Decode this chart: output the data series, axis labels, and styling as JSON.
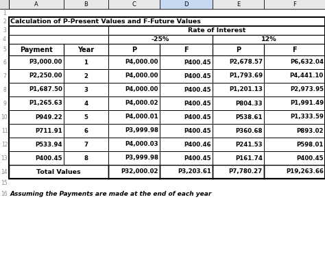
{
  "title": "Calculation of P-Present Values and F-Future Values",
  "rate_of_interest": "Rate of Interest",
  "rate1": "-25%",
  "rate2": "12%",
  "col_headers": [
    "Payment",
    "Year",
    "P",
    "F",
    "P",
    "F"
  ],
  "col_letters": [
    "A",
    "B",
    "C",
    "D",
    "E",
    "F"
  ],
  "rows": [
    [
      "P3,000.00",
      "1",
      "P4,000.00",
      "P400.45",
      "P2,678.57",
      "P6,632.04"
    ],
    [
      "P2,250.00",
      "2",
      "P4,000.00",
      "P400.45",
      "P1,793.69",
      "P4,441.10"
    ],
    [
      "P1,687.50",
      "3",
      "P4,000.00",
      "P400.45",
      "P1,201.13",
      "P2,973.95"
    ],
    [
      "P1,265.63",
      "4",
      "P4,000.02",
      "P400.45",
      "P804.33",
      "P1,991.49"
    ],
    [
      "P949.22",
      "5",
      "P4,000.01",
      "P400.45",
      "P538.61",
      "P1,333.59"
    ],
    [
      "P711.91",
      "6",
      "P3,999.98",
      "P400.45",
      "P360.68",
      "P893.02"
    ],
    [
      "P533.94",
      "7",
      "P4,000.03",
      "P400.46",
      "P241.53",
      "P598.01"
    ],
    [
      "P400.45",
      "8",
      "P3,999.98",
      "P400.45",
      "P161.74",
      "P400.45"
    ]
  ],
  "totals": [
    "Total Values",
    "",
    "P32,000.02",
    "P3,203.61",
    "P7,780.27",
    "P19,263.66"
  ],
  "footnote": "Assuming the Payments are made at the end of each year",
  "col_d_bg": "#c6d9f1",
  "header_col_bg": "#e0e0e0",
  "white_bg": "#ffffff",
  "grid_color": "#000000",
  "text_color": "#000000",
  "row_num_color": "#888888",
  "col_letter_bg": "#e8e8e8"
}
